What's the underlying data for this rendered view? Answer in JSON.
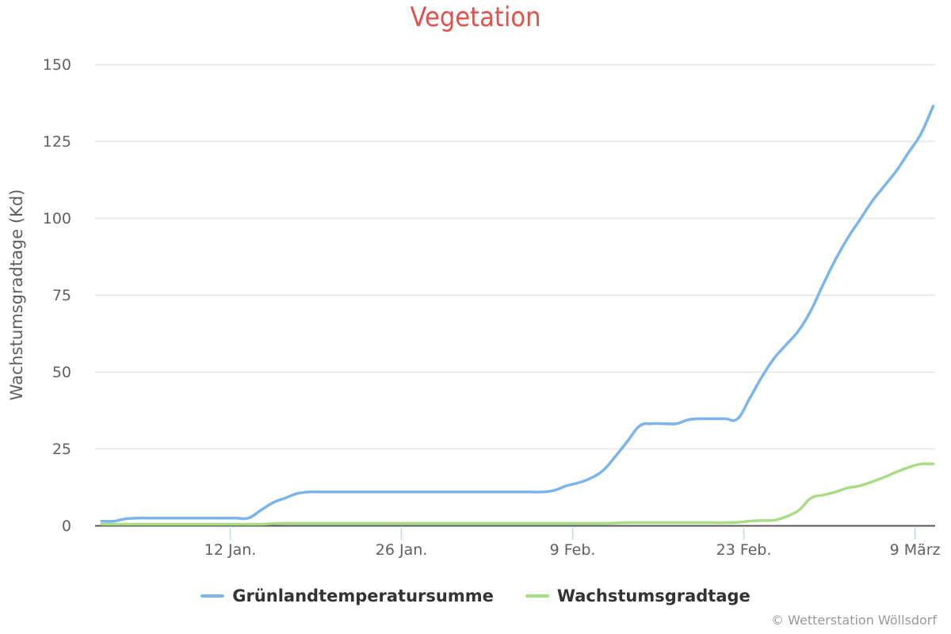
{
  "title": "Vegetation",
  "credits": "© Wetterstation Wöllsdorf",
  "colors": {
    "title": "#e0524b",
    "series1": "#7cb5ec",
    "series2": "#a9dd84",
    "grid": "#e6e6e6",
    "axis": "#555555",
    "tick": "#ccd6eb"
  },
  "legend": [
    {
      "label": "Grünlandtemperatursumme",
      "color": "#7cb5ec"
    },
    {
      "label": "Wachstumsgradtage",
      "color": "#a9dd84"
    }
  ],
  "chart_data": {
    "type": "line",
    "title": "Vegetation",
    "xlabel": "",
    "ylabel": "Wachstumsgradtage (Kd)",
    "ylim": [
      0,
      150
    ],
    "yticks": [
      0,
      25,
      50,
      75,
      100,
      125,
      150
    ],
    "grid": true,
    "legend_position": "bottom",
    "xticks": [
      {
        "label": "12 Jan.",
        "day": 11
      },
      {
        "label": "26 Jan.",
        "day": 25
      },
      {
        "label": "9 Feb.",
        "day": 39
      },
      {
        "label": "23 Feb.",
        "day": 53
      },
      {
        "label": "9 März",
        "day": 67
      }
    ],
    "x_start": "1 Jan.",
    "x_end": "10 März",
    "x_days": [
      0,
      1,
      2,
      3,
      4,
      5,
      6,
      7,
      8,
      9,
      10,
      11,
      12,
      13,
      14,
      15,
      16,
      17,
      18,
      19,
      20,
      21,
      22,
      23,
      24,
      25,
      26,
      27,
      28,
      29,
      30,
      31,
      32,
      33,
      34,
      35,
      36,
      37,
      38,
      39,
      40,
      41,
      42,
      43,
      44,
      45,
      46,
      47,
      48,
      49,
      50,
      51,
      52,
      53,
      54,
      55,
      56,
      57,
      58,
      59,
      60,
      61,
      62,
      63,
      64,
      65,
      66,
      67,
      68
    ],
    "series": [
      {
        "name": "Grünlandtemperatursumme",
        "color": "#7cb5ec",
        "values": [
          1.0,
          1.0,
          1.8,
          2.0,
          2.0,
          2.0,
          2.0,
          2.0,
          2.0,
          2.0,
          2.0,
          2.0,
          2.0,
          4.5,
          7.0,
          8.5,
          10.0,
          10.5,
          10.5,
          10.5,
          10.5,
          10.5,
          10.5,
          10.5,
          10.5,
          10.5,
          10.5,
          10.5,
          10.5,
          10.5,
          10.5,
          10.5,
          10.5,
          10.5,
          10.5,
          10.5,
          10.5,
          11.0,
          12.5,
          13.5,
          15.0,
          17.5,
          22.0,
          27.0,
          32.0,
          32.7,
          32.7,
          32.7,
          34.0,
          34.3,
          34.3,
          34.3,
          34.3,
          41.0,
          48.0,
          54.0,
          58.5,
          63.0,
          69.5,
          78.0,
          86.0,
          93.0,
          99.0,
          105.0,
          110.0,
          115.0,
          121.0,
          127.0,
          136.0
        ]
      },
      {
        "name": "Wachstumsgradtage",
        "color": "#a9dd84",
        "values": [
          0.0,
          0.0,
          0.0,
          0.0,
          0.0,
          0.0,
          0.0,
          0.0,
          0.0,
          0.0,
          0.0,
          0.0,
          0.0,
          0.0,
          0.2,
          0.3,
          0.3,
          0.3,
          0.3,
          0.3,
          0.3,
          0.3,
          0.3,
          0.3,
          0.3,
          0.3,
          0.3,
          0.3,
          0.3,
          0.3,
          0.3,
          0.3,
          0.3,
          0.3,
          0.3,
          0.3,
          0.3,
          0.3,
          0.3,
          0.3,
          0.3,
          0.3,
          0.4,
          0.5,
          0.5,
          0.5,
          0.5,
          0.5,
          0.5,
          0.5,
          0.5,
          0.5,
          0.6,
          1.0,
          1.2,
          1.3,
          2.5,
          4.5,
          8.5,
          9.5,
          10.5,
          11.8,
          12.5,
          13.8,
          15.3,
          17.0,
          18.5,
          19.6,
          19.6
        ]
      }
    ]
  }
}
